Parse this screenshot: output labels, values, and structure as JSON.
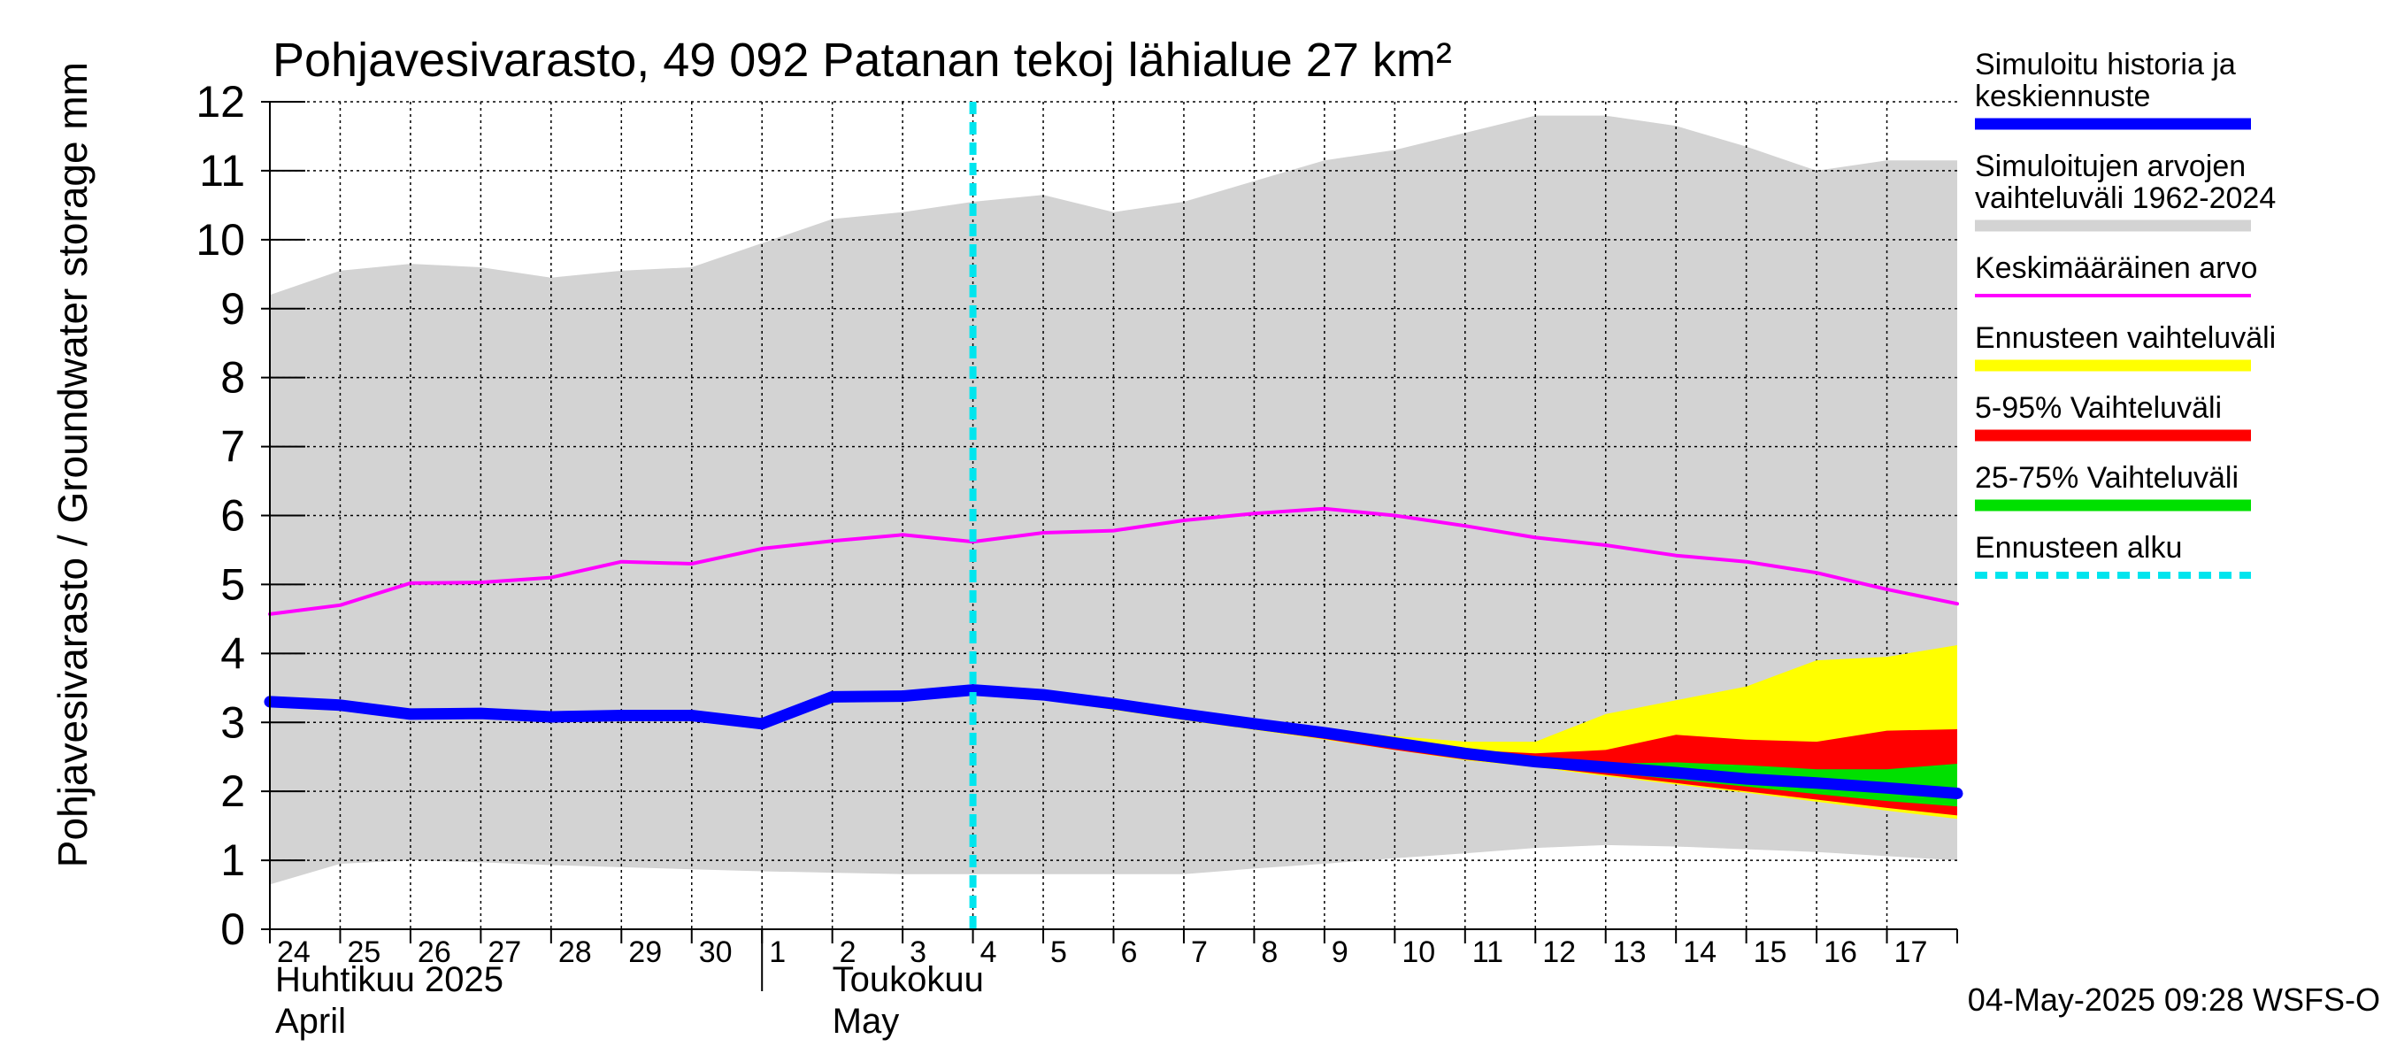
{
  "chart_data": {
    "type": "area",
    "title": "Pohjavesivarasto, 49 092 Patanan tekoj lähialue 27 km²",
    "ylabel": "Pohjavesivarasto / Groundwater storage   mm",
    "ylim": [
      0,
      12
    ],
    "yticks": [
      0,
      1,
      2,
      3,
      4,
      5,
      6,
      7,
      8,
      9,
      10,
      11,
      12
    ],
    "x_tick_labels": [
      "24",
      "25",
      "26",
      "27",
      "28",
      "29",
      "30",
      "1",
      "2",
      "3",
      "4",
      "5",
      "6",
      "7",
      "8",
      "9",
      "10",
      "11",
      "12",
      "13",
      "14",
      "15",
      "16",
      "17"
    ],
    "month_labels": [
      {
        "line1": "Huhtikuu  2025",
        "line2": "April"
      },
      {
        "line1": "Toukokuu",
        "line2": "May"
      }
    ],
    "forecast_start_day": 10.0,
    "grid": true,
    "legend_placement": "right",
    "series": [
      {
        "name": "Simuloitujen arvojen vaihteluväli 1962-2024",
        "kind": "band",
        "color": "#d3d3d3",
        "upper": [
          9.2,
          9.55,
          9.65,
          9.6,
          9.45,
          9.55,
          9.6,
          9.95,
          10.3,
          10.4,
          10.55,
          10.65,
          10.4,
          10.55,
          10.85,
          11.15,
          11.3,
          11.55,
          11.8,
          11.8,
          11.65,
          11.35,
          11.0,
          11.15,
          11.15
        ],
        "lower": [
          0.65,
          0.95,
          1.0,
          0.97,
          0.93,
          0.9,
          0.87,
          0.84,
          0.82,
          0.8,
          0.8,
          0.8,
          0.8,
          0.8,
          0.88,
          0.95,
          1.03,
          1.1,
          1.18,
          1.22,
          1.2,
          1.16,
          1.12,
          1.06,
          1.0
        ]
      },
      {
        "name": "Ennusteen vaihteluväli",
        "kind": "forecast-band",
        "color": "#ffff00",
        "x": [
          10,
          11,
          12,
          13,
          14,
          15,
          16,
          17,
          18,
          19,
          20,
          21,
          22,
          23,
          24
        ],
        "upper": [
          3.45,
          3.38,
          3.28,
          3.15,
          3.03,
          2.9,
          2.8,
          2.72,
          2.72,
          3.12,
          3.32,
          3.52,
          3.9,
          3.95,
          4.12
        ],
        "lower": [
          3.45,
          3.33,
          3.18,
          3.03,
          2.89,
          2.75,
          2.6,
          2.45,
          2.35,
          2.22,
          2.1,
          1.98,
          1.85,
          1.72,
          1.6
        ]
      },
      {
        "name": "5-95% Vaihteluväli",
        "kind": "forecast-band",
        "color": "#ff0000",
        "x": [
          10,
          11,
          12,
          13,
          14,
          15,
          16,
          17,
          18,
          19,
          20,
          21,
          22,
          23,
          24
        ],
        "upper": [
          3.45,
          3.37,
          3.25,
          3.12,
          2.99,
          2.86,
          2.73,
          2.6,
          2.55,
          2.6,
          2.82,
          2.75,
          2.72,
          2.88,
          2.9
        ],
        "lower": [
          3.45,
          3.33,
          3.2,
          3.05,
          2.9,
          2.76,
          2.6,
          2.46,
          2.36,
          2.24,
          2.12,
          2.0,
          1.88,
          1.76,
          1.65
        ]
      },
      {
        "name": "25-75% Vaihteluväli",
        "kind": "forecast-band",
        "color": "#00e000",
        "x": [
          10,
          11,
          12,
          13,
          14,
          15,
          16,
          17,
          18,
          19,
          20,
          21,
          22,
          23,
          24
        ],
        "upper": [
          3.45,
          3.36,
          3.23,
          3.09,
          2.95,
          2.8,
          2.66,
          2.53,
          2.44,
          2.4,
          2.42,
          2.38,
          2.32,
          2.32,
          2.4
        ],
        "lower": [
          3.45,
          3.34,
          3.21,
          3.07,
          2.92,
          2.78,
          2.63,
          2.49,
          2.38,
          2.28,
          2.17,
          2.07,
          1.96,
          1.86,
          1.78
        ]
      },
      {
        "name": "Keskimääräinen arvo",
        "kind": "line",
        "color": "#ff00ff",
        "width": 4,
        "values": [
          4.57,
          4.7,
          5.02,
          5.03,
          5.1,
          5.33,
          5.3,
          5.52,
          5.63,
          5.72,
          5.62,
          5.75,
          5.78,
          5.93,
          6.03,
          6.1,
          6.0,
          5.85,
          5.68,
          5.57,
          5.42,
          5.33,
          5.17,
          4.93,
          4.72
        ]
      },
      {
        "name": "Simuloitu historia ja keskiennuste",
        "kind": "line",
        "color": "#0000ff",
        "width": 13,
        "values": [
          3.3,
          3.25,
          3.12,
          3.13,
          3.08,
          3.1,
          3.1,
          2.98,
          3.37,
          3.38,
          3.47,
          3.4,
          3.27,
          3.12,
          2.98,
          2.85,
          2.7,
          2.55,
          2.43,
          2.35,
          2.27,
          2.18,
          2.12,
          2.05,
          1.97
        ]
      }
    ],
    "legend": [
      {
        "label_lines": [
          "Simuloitu historia ja",
          "keskiennuste"
        ],
        "color": "#0000ff",
        "style": "thick"
      },
      {
        "label_lines": [
          "Simuloitujen arvojen",
          "vaihteluväli 1962-2024"
        ],
        "color": "#d3d3d3",
        "style": "thick"
      },
      {
        "label_lines": [
          "Keskimääräinen arvo"
        ],
        "color": "#ff00ff",
        "style": "thin"
      },
      {
        "label_lines": [
          "Ennusteen vaihteluväli"
        ],
        "color": "#ffff00",
        "style": "thick"
      },
      {
        "label_lines": [
          "5-95% Vaihteluväli"
        ],
        "color": "#ff0000",
        "style": "thick"
      },
      {
        "label_lines": [
          "25-75% Vaihteluväli"
        ],
        "color": "#00e000",
        "style": "thick"
      },
      {
        "label_lines": [
          "Ennusteen alku"
        ],
        "color": "#00e5ee",
        "style": "dashed"
      }
    ],
    "forecast_start_color": "#00e5ee",
    "footer": "04-May-2025 09:28 WSFS-O"
  }
}
